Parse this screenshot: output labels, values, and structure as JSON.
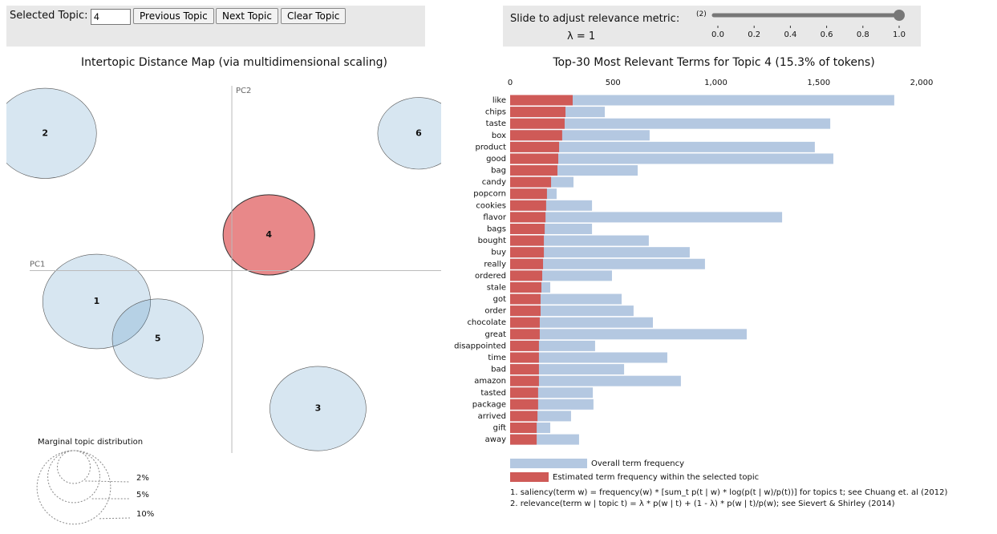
{
  "controls": {
    "selected_topic_label": "Selected Topic:",
    "selected_topic": "4",
    "buttons": [
      "Previous Topic",
      "Next Topic",
      "Clear Topic"
    ],
    "slider_label": "Slide to adjust relevance metric:",
    "slider_note": "(2)",
    "lambda_label": "λ = 1",
    "slider_value": 1,
    "slider_lim": [
      0,
      1
    ],
    "slider_ticks": [
      {
        "value": 0,
        "label": "0.0"
      },
      {
        "value": 0.2,
        "label": "0.2"
      },
      {
        "value": 0.4,
        "label": "0.4"
      },
      {
        "value": 0.6,
        "label": "0.6"
      },
      {
        "value": 0.8,
        "label": "0.8"
      },
      {
        "value": 1,
        "label": "1.0"
      }
    ]
  },
  "chart_data": [
    {
      "type": "bubble",
      "title": "Intertopic Distance Map (via multidimensional scaling)",
      "x_label": "PC1",
      "y_label": "PC2",
      "topics": [
        "1",
        "2",
        "3",
        "4",
        "5",
        "6"
      ],
      "x": [
        -0.168,
        -0.232,
        0.107,
        0.046,
        -0.092,
        0.232
      ],
      "y": [
        -0.039,
        0.173,
        -0.174,
        0.045,
        -0.086,
        0.173
      ],
      "sizes": [
        21.2,
        19.3,
        16.9,
        15.3,
        15.1,
        12.2
      ],
      "xlim": [
        -0.28,
        0.26
      ],
      "ylim": [
        -0.23,
        0.24
      ],
      "color": "#1f77b4",
      "highlight_color": "#d62728",
      "size_legend": {
        "title": "Marginal topic distribution",
        "ticks": [
          {
            "value": 2,
            "label": "2%"
          },
          {
            "value": 5,
            "label": "5%"
          },
          {
            "value": 10,
            "label": "10%"
          }
        ]
      }
    },
    {
      "type": "bar",
      "title": "Top-30 Most Relevant Terms for Topic 4 (15.3% of tokens)",
      "categories": [
        "like",
        "chips",
        "taste",
        "box",
        "product",
        "good",
        "bag",
        "candy",
        "popcorn",
        "cookies",
        "flavor",
        "bags",
        "bought",
        "buy",
        "really",
        "ordered",
        "stale",
        "got",
        "order",
        "chocolate",
        "great",
        "disappointed",
        "time",
        "bad",
        "amazon",
        "tasted",
        "package",
        "arrived",
        "gift",
        "away"
      ],
      "series": [
        {
          "name": "Overall term frequency",
          "color": "#b4c8e1",
          "values": [
            1867,
            460,
            1556,
            678,
            1481,
            1571,
            620,
            308,
            226,
            398,
            1322,
            398,
            674,
            873,
            947,
            495,
            195,
            542,
            600,
            694,
            1150,
            413,
            764,
            554,
            830,
            402,
            405,
            296,
            195,
            335
          ]
        },
        {
          "name": "Estimated term frequency within the selected topic",
          "color": "#cf5a57",
          "values": [
            304,
            269,
            265,
            253,
            238,
            234,
            230,
            199,
            179,
            175,
            172,
            168,
            164,
            164,
            160,
            156,
            152,
            148,
            148,
            144,
            144,
            140,
            140,
            140,
            140,
            136,
            136,
            133,
            129,
            129
          ]
        }
      ],
      "xlim": [
        0,
        2000
      ],
      "xticks": [
        0,
        500,
        {
          "value": 1000,
          "label": "1,000"
        },
        {
          "value": 1500,
          "label": "1,500"
        },
        {
          "value": 2000,
          "label": "2,000"
        }
      ],
      "footnotes": [
        "1. saliency(term w) = frequency(w) * [sum_t p(t | w) * log(p(t | w)/p(t))] for topics t; see Chuang et. al (2012)",
        "2. relevance(term w | topic t) = λ * p(w | t) + (1 - λ) * p(w | t)/p(w); see Sievert & Shirley (2014)"
      ]
    }
  ]
}
